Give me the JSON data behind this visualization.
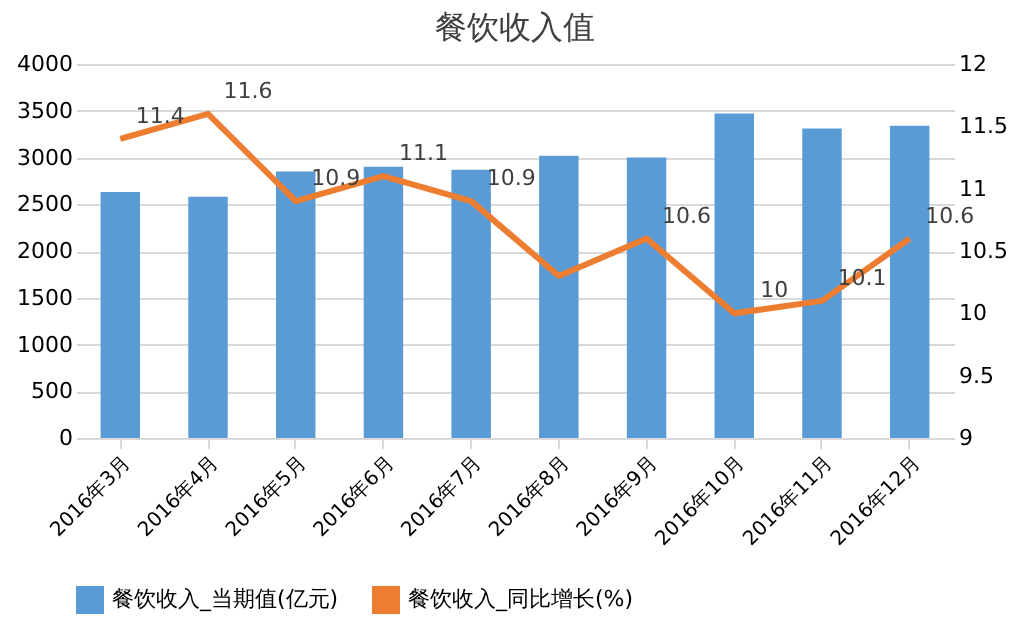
{
  "chart_data": {
    "type": "bar",
    "title": "餐饮收入值",
    "categories": [
      "2016年3月",
      "2016年4月",
      "2016年5月",
      "2016年6月",
      "2016年7月",
      "2016年8月",
      "2016年9月",
      "2016年10月",
      "2016年11月",
      "2016年12月"
    ],
    "series": [
      {
        "name": "餐饮收入_当期值(亿元)",
        "color": "#5b9bd5",
        "values": [
          2630,
          2580,
          2850,
          2900,
          2870,
          3020,
          3000,
          3470,
          3310,
          3340
        ]
      },
      {
        "name": "餐饮收入_同比增长(%)",
        "type": "line",
        "axis": "y2",
        "color": "#ed7d31",
        "values": [
          11.4,
          11.6,
          10.9,
          11.1,
          10.9,
          10.3,
          10.6,
          10,
          10.1,
          10.6
        ],
        "value_labels": [
          "11.4",
          "11.6",
          "10.9",
          "11.1",
          "10.9",
          null,
          "10.6",
          "10",
          "10.1",
          "10.6"
        ]
      }
    ],
    "ylim": [
      0,
      4000
    ],
    "yticks": [
      0,
      500,
      1000,
      1500,
      2000,
      2500,
      3000,
      3500,
      4000
    ],
    "y2lim": [
      9,
      12
    ],
    "y2ticks": [
      9,
      9.5,
      10,
      10.5,
      11,
      11.5,
      12
    ],
    "grid": "y",
    "legend": "bottom"
  }
}
